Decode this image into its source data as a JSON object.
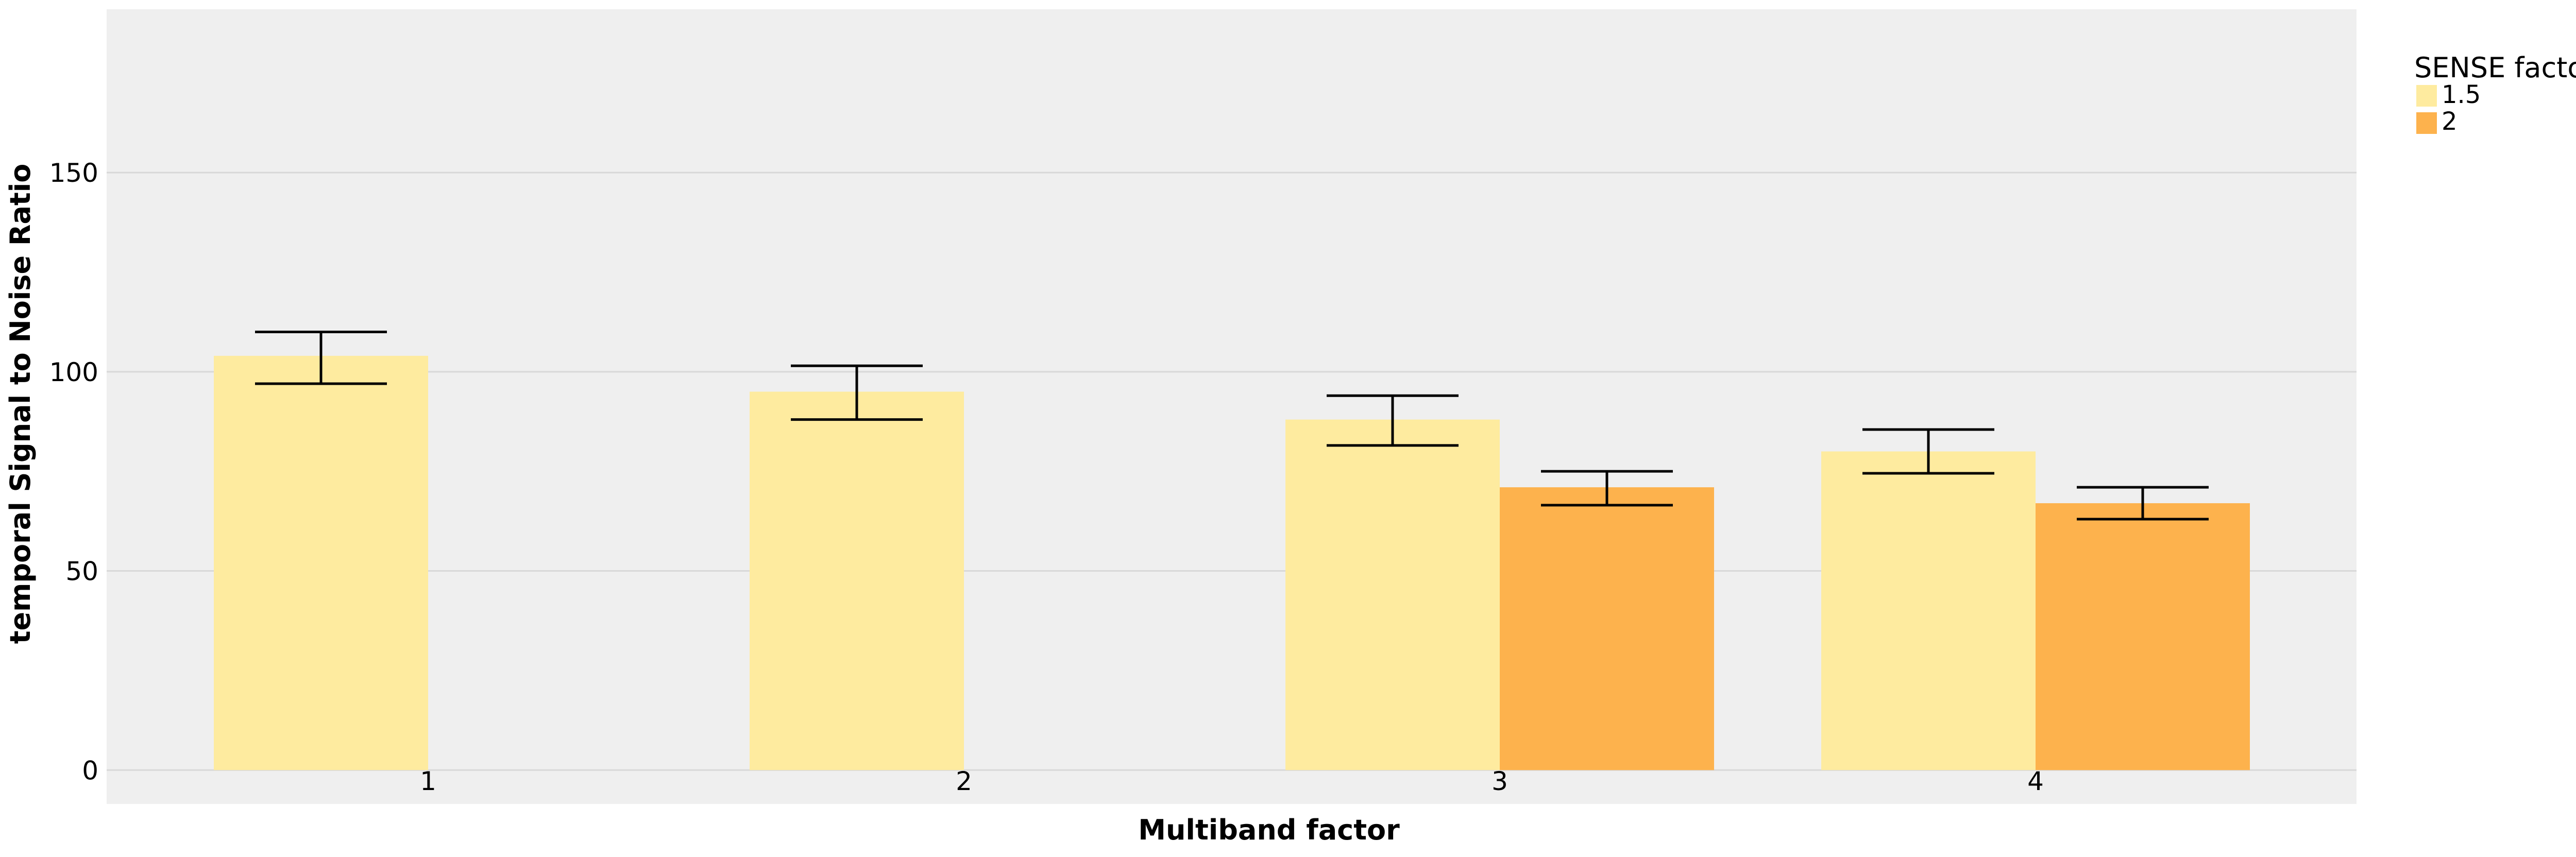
{
  "chart_data": {
    "type": "bar",
    "title": "",
    "xlabel": "Multiband factor",
    "ylabel": "temporal Signal to Noise Ratio",
    "categories": [
      "1",
      "2",
      "3",
      "4"
    ],
    "ylim": [
      -8.5,
      191
    ],
    "yticks": [
      0,
      50,
      100,
      150
    ],
    "grid": true,
    "legend": {
      "title": "SENSE factor",
      "placement": "right-top"
    },
    "series": [
      {
        "name": "1.5",
        "color": "#FEEB9F",
        "values": [
          104,
          95,
          88,
          80
        ],
        "error_low": [
          97,
          88,
          81.5,
          74.5
        ],
        "error_high": [
          110,
          101.5,
          94,
          85.5
        ]
      },
      {
        "name": "2",
        "color": "#FDB24D",
        "values": [
          null,
          null,
          71,
          67
        ],
        "error_low": [
          null,
          null,
          66.5,
          63
        ],
        "error_high": [
          null,
          null,
          75,
          71
        ]
      }
    ]
  },
  "colors": {
    "panel_background": "#EFEFEF",
    "grid": "#D8D8D8",
    "error_bar": "#000000"
  }
}
